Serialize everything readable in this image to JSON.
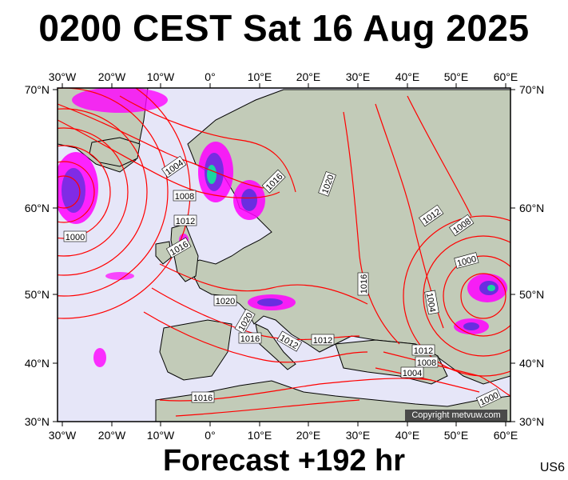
{
  "header": {
    "title": "0200 CEST Sat 16 Aug 2025"
  },
  "footer": {
    "forecast": "Forecast +192 hr",
    "model_code": "US6"
  },
  "copyright": "Copyright metvuw.com",
  "map": {
    "lon_labels": [
      "30°W",
      "20°W",
      "10°W",
      "0°",
      "10°E",
      "20°E",
      "30°E",
      "40°E",
      "50°E",
      "60°E"
    ],
    "lat_labels_left": [
      "70°N",
      "60°N",
      "50°N",
      "40°N",
      "30°N"
    ],
    "lat_labels_right": [
      "70°N",
      "60°N",
      "50°N",
      "40°N",
      "30°N"
    ],
    "isobar_labels": [
      "1004",
      "1008",
      "1012",
      "1016",
      "1000",
      "1016",
      "1020",
      "1020",
      "1016",
      "1012",
      "1012",
      "1016",
      "1020",
      "1012",
      "1008",
      "1000",
      "1004",
      "1012",
      "1008",
      "1004",
      "1000",
      "1016"
    ],
    "colors": {
      "ocean": "#e6e6f8",
      "land": "#c2cbb8",
      "isobar": "#ff0000",
      "coast": "#000000",
      "rain_light": "#ff00ff",
      "rain_mid": "#6a2de0",
      "rain_heavy": "#19d7a0"
    }
  }
}
